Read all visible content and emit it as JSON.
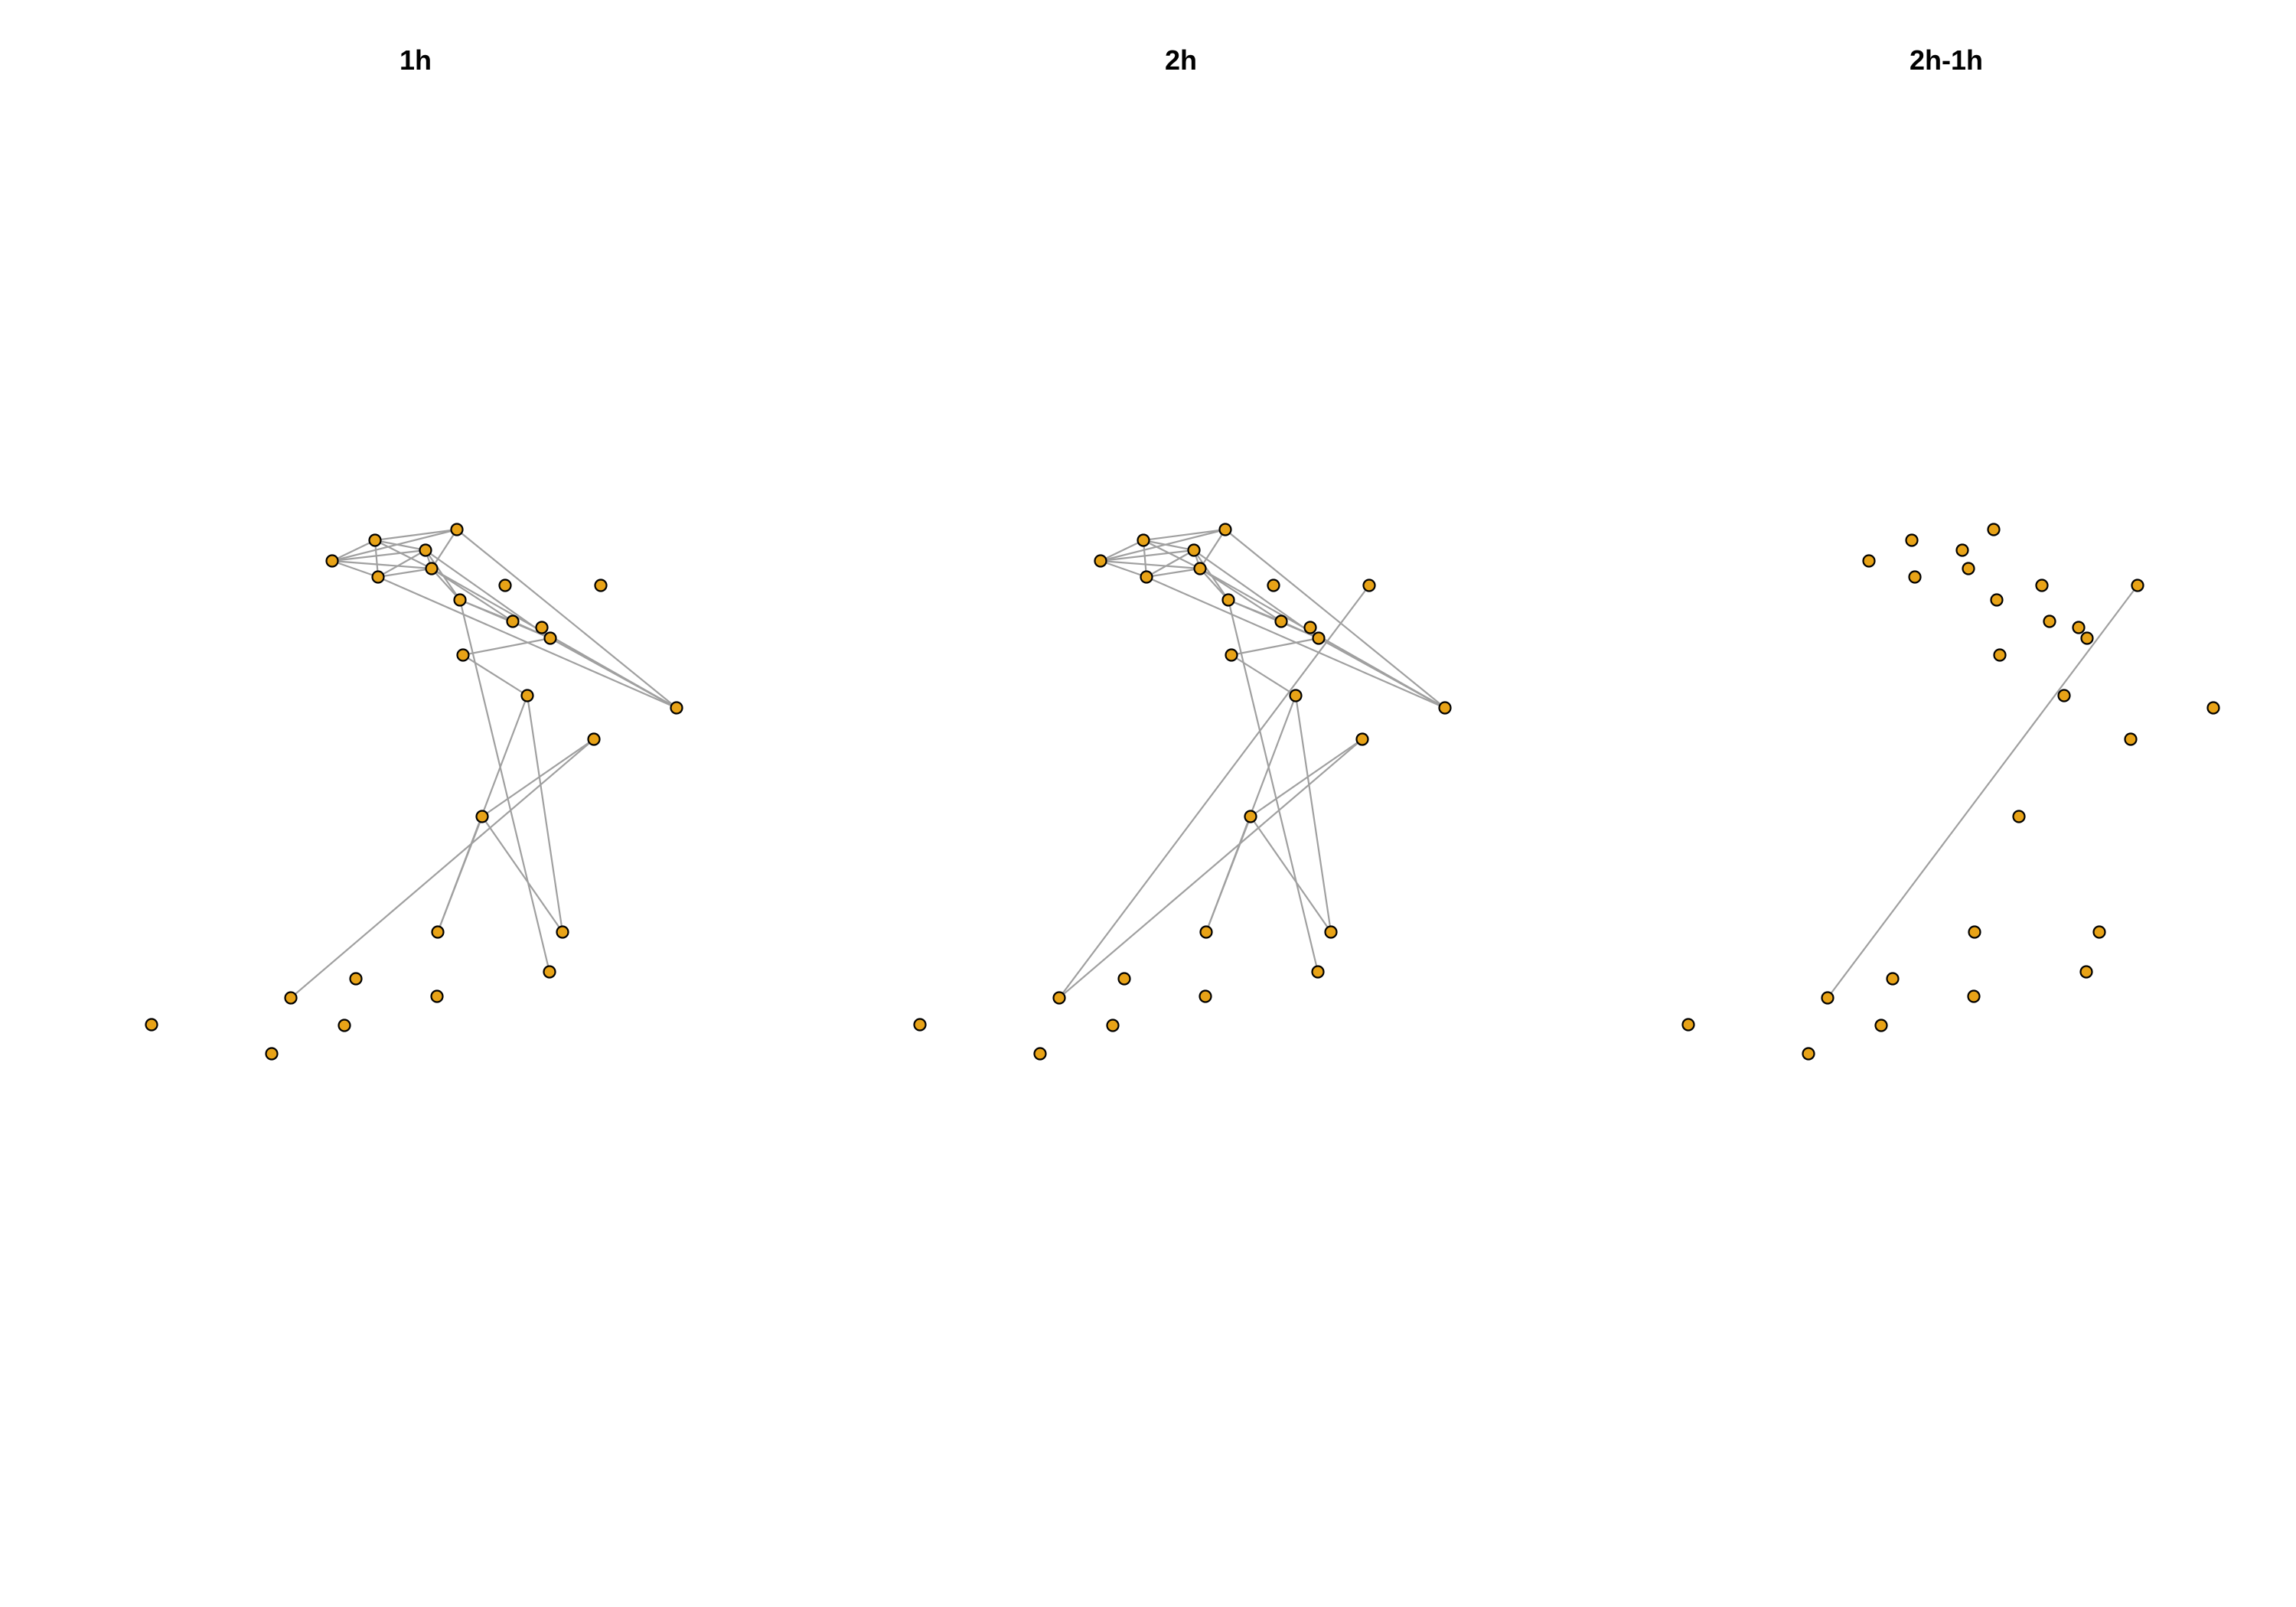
{
  "colors": {
    "node_fill": "#E8A317",
    "node_stroke": "#000000",
    "edge": "#A0A0A0",
    "background": "#FFFFFF"
  },
  "panels": [
    {
      "title": "1h"
    },
    {
      "title": "2h"
    },
    {
      "title": "2h-1h"
    }
  ],
  "graph": {
    "node_count": 26,
    "edges_1h": [
      [
        0,
        1
      ],
      [
        0,
        2
      ],
      [
        0,
        3
      ],
      [
        0,
        4
      ],
      [
        0,
        5
      ],
      [
        1,
        2
      ],
      [
        1,
        3
      ],
      [
        1,
        4
      ],
      [
        1,
        5
      ],
      [
        2,
        3
      ],
      [
        2,
        4
      ],
      [
        2,
        6
      ],
      [
        3,
        4
      ],
      [
        3,
        16
      ],
      [
        4,
        5
      ],
      [
        4,
        6
      ],
      [
        4,
        16
      ],
      [
        5,
        16
      ],
      [
        6,
        7
      ],
      [
        6,
        19
      ],
      [
        6,
        9
      ],
      [
        10,
        11
      ],
      [
        10,
        14
      ],
      [
        10,
        15
      ],
      [
        12,
        13
      ],
      [
        12,
        17
      ],
      [
        13,
        14
      ],
      [
        13,
        15
      ],
      [
        11,
        9
      ],
      [
        9,
        16
      ],
      [
        2,
        9
      ],
      [
        4,
        7
      ],
      [
        7,
        9
      ]
    ],
    "edges_2h": [
      [
        0,
        1
      ],
      [
        0,
        2
      ],
      [
        0,
        3
      ],
      [
        0,
        4
      ],
      [
        0,
        5
      ],
      [
        1,
        2
      ],
      [
        1,
        3
      ],
      [
        1,
        4
      ],
      [
        1,
        5
      ],
      [
        2,
        3
      ],
      [
        2,
        4
      ],
      [
        2,
        6
      ],
      [
        3,
        4
      ],
      [
        3,
        16
      ],
      [
        4,
        5
      ],
      [
        4,
        6
      ],
      [
        4,
        16
      ],
      [
        5,
        16
      ],
      [
        6,
        7
      ],
      [
        6,
        19
      ],
      [
        6,
        9
      ],
      [
        10,
        11
      ],
      [
        10,
        14
      ],
      [
        10,
        15
      ],
      [
        12,
        13
      ],
      [
        12,
        17
      ],
      [
        13,
        14
      ],
      [
        13,
        15
      ],
      [
        11,
        9
      ],
      [
        9,
        16
      ],
      [
        2,
        9
      ],
      [
        4,
        7
      ],
      [
        7,
        9
      ],
      [
        8,
        17
      ]
    ],
    "edges_diff": [
      [
        8,
        17
      ]
    ]
  }
}
